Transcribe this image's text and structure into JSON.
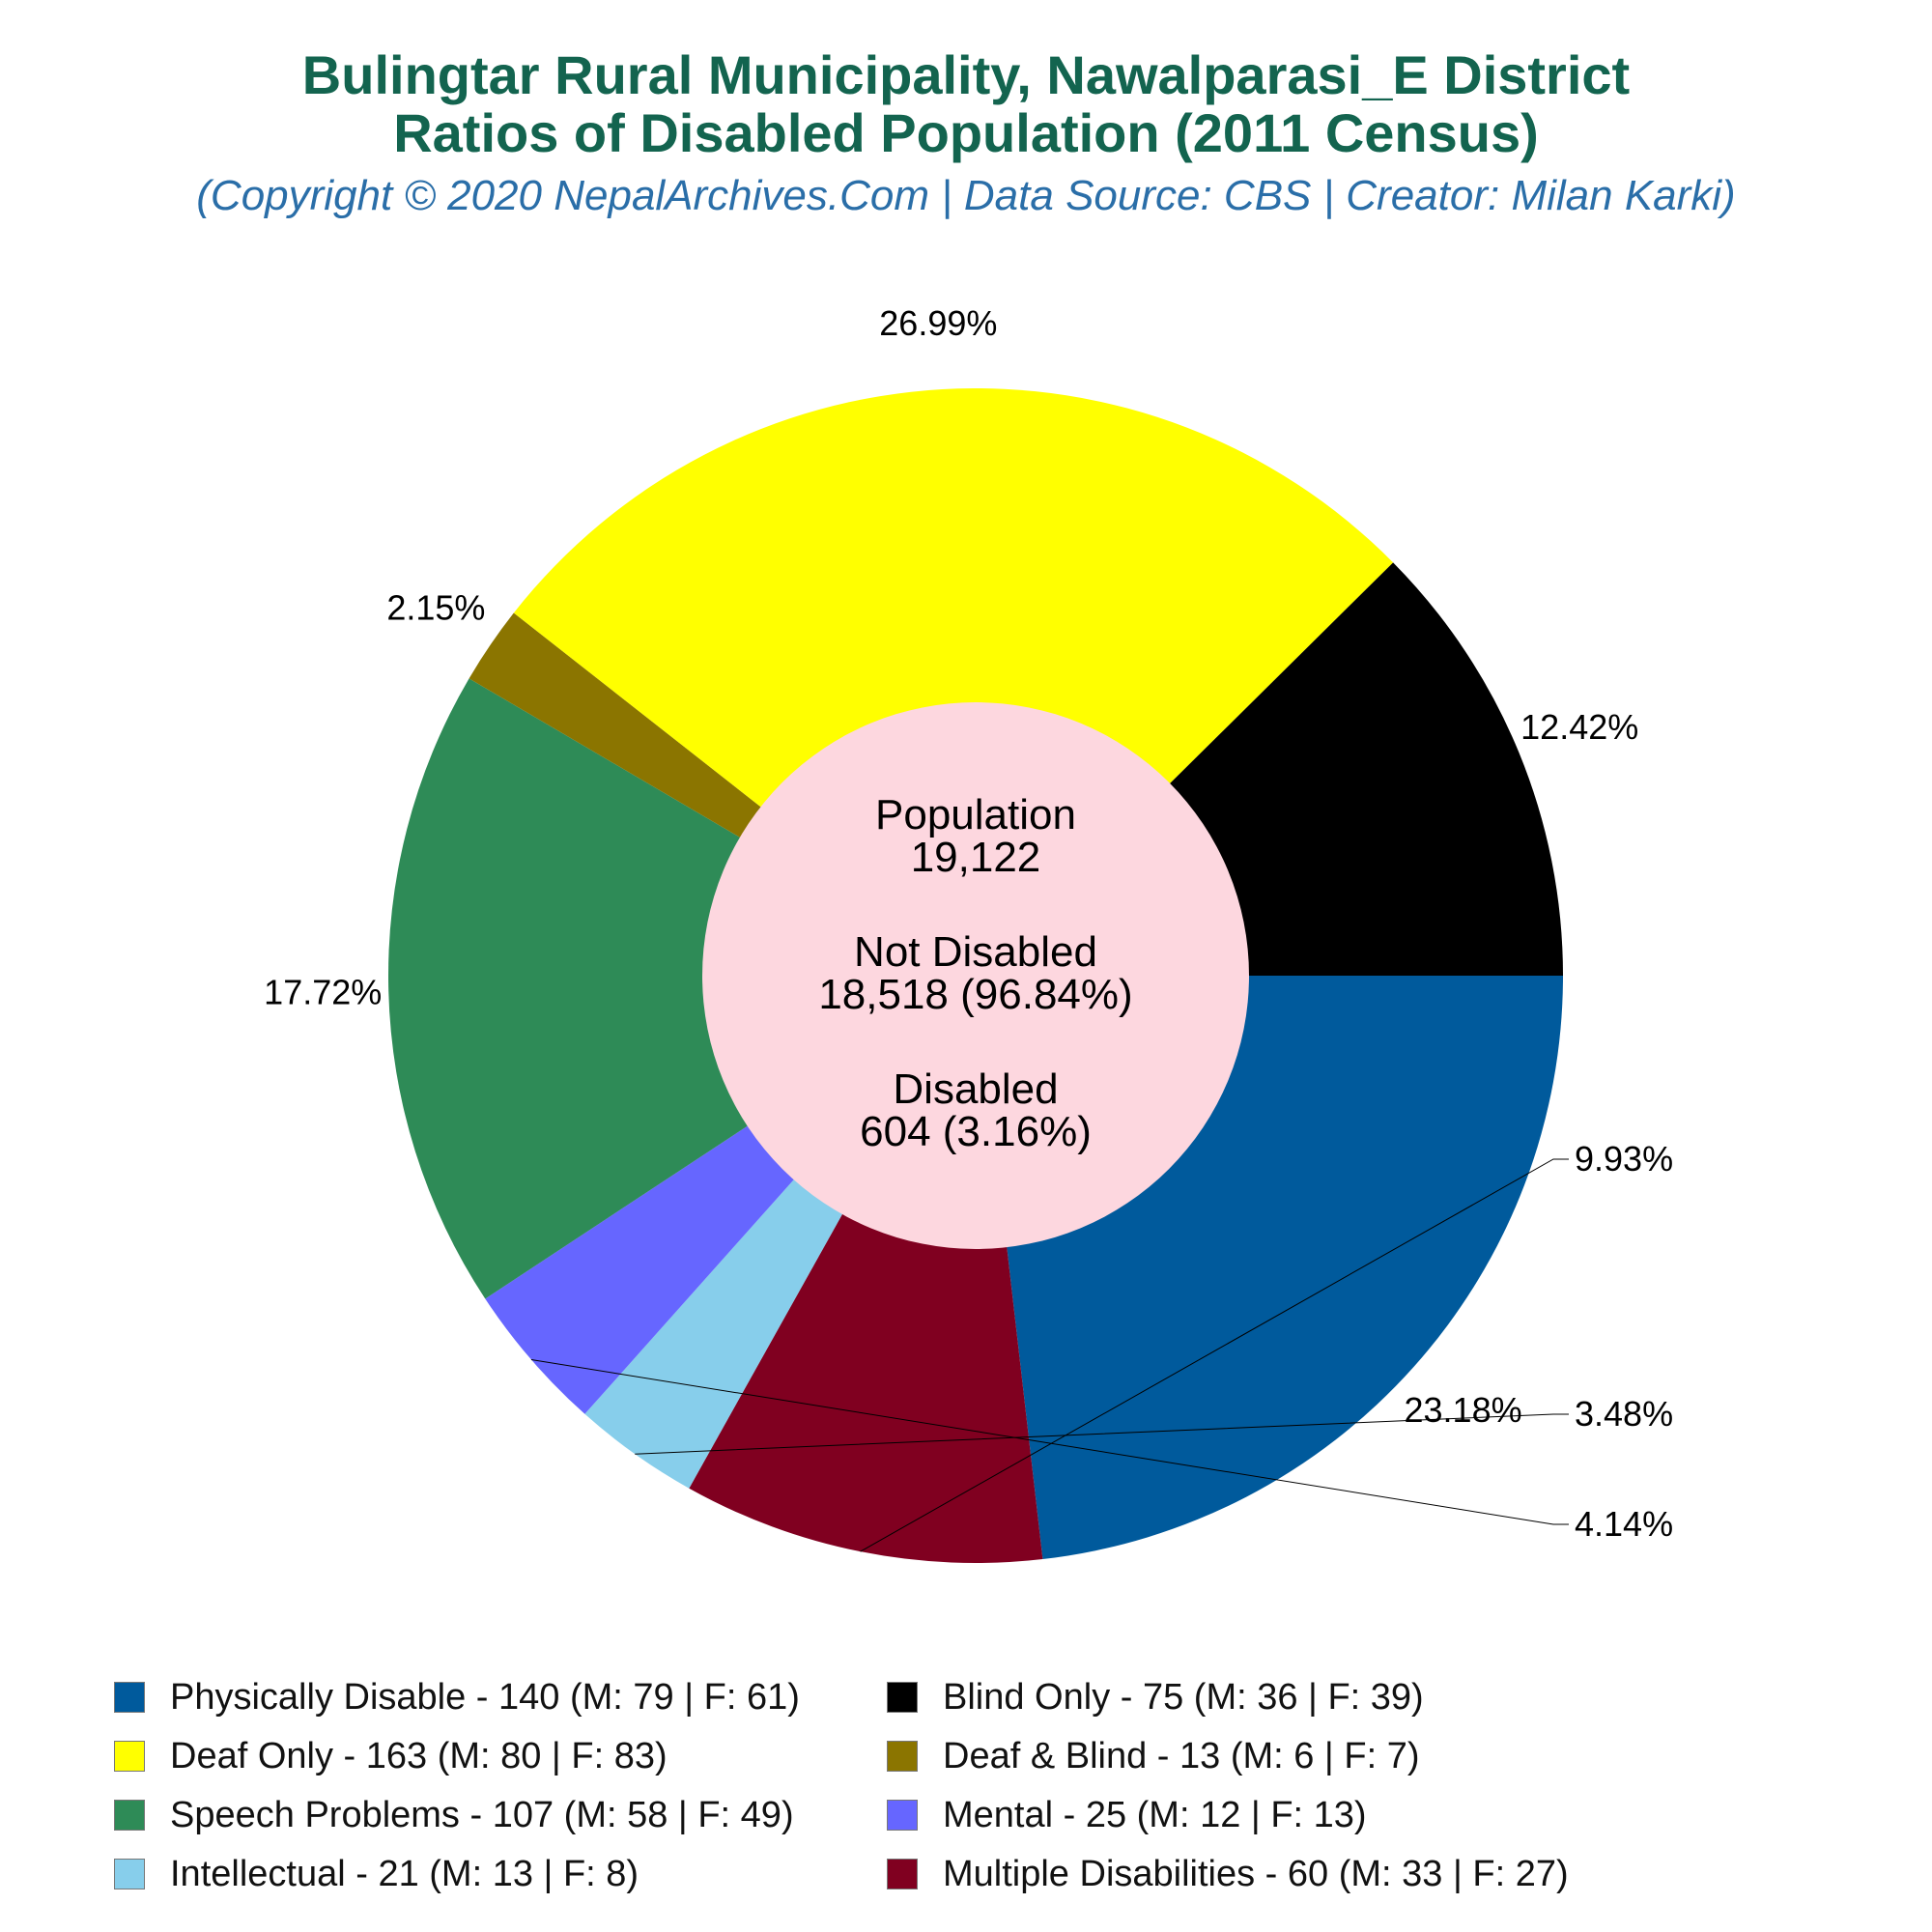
{
  "title_line1": "Bulingtar Rural Municipality, Nawalparasi_E District",
  "title_line2": "Ratios of Disabled Population (2011 Census)",
  "subtitle": "(Copyright © 2020 NepalArchives.Com | Data Source: CBS | Creator: Milan Karki)",
  "center": {
    "population_label": "Population",
    "population_value": "19,122",
    "not_disabled_label": "Not Disabled",
    "not_disabled_value": "18,518 (96.84%)",
    "disabled_label": "Disabled",
    "disabled_value": "604 (3.16%)",
    "color": "#fdd7df"
  },
  "chart_data": {
    "type": "pie",
    "donut": true,
    "legend_position": "bottom",
    "slices": [
      {
        "category": "Physically Disable",
        "value": 140,
        "percent_label": "23.18%",
        "color": "#005a9c",
        "legend": "Physically Disable - 140 (M: 79 | F: 61)"
      },
      {
        "category": "Multiple Disabilities",
        "value": 60,
        "percent_label": "9.93%",
        "color": "#800020",
        "legend": "Multiple Disabilities - 60 (M: 33 | F: 27)"
      },
      {
        "category": "Intellectual",
        "value": 21,
        "percent_label": "3.48%",
        "color": "#87ceeb",
        "legend": "Intellectual - 21 (M: 13 | F: 8)"
      },
      {
        "category": "Mental",
        "value": 25,
        "percent_label": "4.14%",
        "color": "#6666ff",
        "legend": "Mental - 25 (M: 12 | F: 13)"
      },
      {
        "category": "Speech Problems",
        "value": 107,
        "percent_label": "17.72%",
        "color": "#2e8b57",
        "legend": "Speech Problems - 107 (M: 58 | F: 49)"
      },
      {
        "category": "Deaf & Blind",
        "value": 13,
        "percent_label": "2.15%",
        "color": "#8b7500",
        "legend": "Deaf & Blind - 13 (M: 6 | F: 7)"
      },
      {
        "category": "Deaf Only",
        "value": 163,
        "percent_label": "26.99%",
        "color": "#ffff00",
        "legend": "Deaf Only - 163 (M: 80 | F: 83)"
      },
      {
        "category": "Blind Only",
        "value": 75,
        "percent_label": "12.42%",
        "color": "#000000",
        "legend": "Blind Only - 75 (M: 36 | F: 39)"
      }
    ],
    "legend_order": [
      "Physically Disable",
      "Blind Only",
      "Deaf Only",
      "Deaf & Blind",
      "Speech Problems",
      "Mental",
      "Intellectual",
      "Multiple Disabilities"
    ]
  }
}
